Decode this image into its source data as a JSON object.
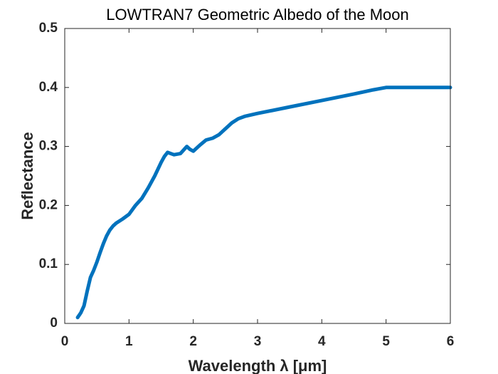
{
  "chart_data": {
    "type": "line",
    "title": "LOWTRAN7 Geometric Albedo of the Moon",
    "xlabel": "Wavelength λ [μm]",
    "ylabel": "Reflectance",
    "xlim": [
      0,
      6
    ],
    "ylim": [
      0,
      0.5
    ],
    "xticks": [
      "0",
      "1",
      "2",
      "3",
      "4",
      "5",
      "6"
    ],
    "yticks": [
      "0",
      "0.1",
      "0.2",
      "0.3",
      "0.4",
      "0.5"
    ],
    "grid": false,
    "legend": "none",
    "series_color": "#0072BD",
    "series": [
      {
        "x": [
          0.2,
          0.25,
          0.3,
          0.35,
          0.4,
          0.45,
          0.5,
          0.55,
          0.6,
          0.65,
          0.7,
          0.75,
          0.8,
          0.9,
          1.0,
          1.1,
          1.2,
          1.3,
          1.4,
          1.5,
          1.55,
          1.6,
          1.65,
          1.7,
          1.8,
          1.9,
          1.95,
          2.0,
          2.1,
          2.2,
          2.3,
          2.4,
          2.5,
          2.6,
          2.7,
          2.8,
          3.0,
          3.5,
          4.0,
          4.5,
          4.8,
          5.0,
          5.5,
          6.0
        ],
        "y": [
          0.01,
          0.018,
          0.03,
          0.055,
          0.078,
          0.09,
          0.104,
          0.12,
          0.135,
          0.148,
          0.158,
          0.165,
          0.17,
          0.177,
          0.185,
          0.2,
          0.212,
          0.23,
          0.25,
          0.273,
          0.283,
          0.29,
          0.288,
          0.286,
          0.288,
          0.3,
          0.295,
          0.292,
          0.302,
          0.311,
          0.314,
          0.32,
          0.33,
          0.34,
          0.347,
          0.351,
          0.356,
          0.367,
          0.378,
          0.389,
          0.396,
          0.4,
          0.4,
          0.4
        ]
      }
    ]
  }
}
